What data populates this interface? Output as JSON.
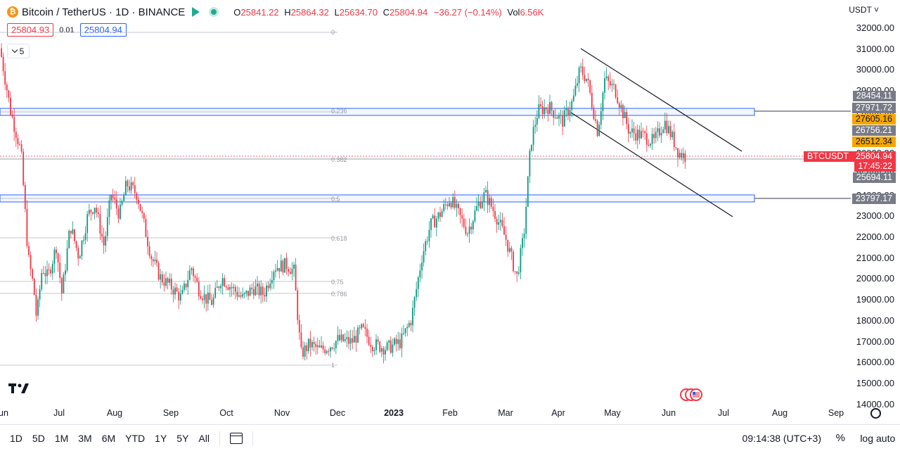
{
  "header": {
    "symbol_logo": "₿",
    "title": "Bitcoin / TetherUS · 1D · BINANCE",
    "ohlc": {
      "o_label": "O",
      "o": "25841.22",
      "h_label": "H",
      "h": "25864.32",
      "l_label": "L",
      "l": "25634.70",
      "c_label": "C",
      "c": "25804.94",
      "change": "−36.27 (−0.14%)",
      "vol_label": "Vol",
      "vol": "6.56K"
    }
  },
  "order": {
    "sell": "25804.93",
    "spread": "0.01",
    "buy": "25804.94"
  },
  "indicator_toggle": {
    "count": "5"
  },
  "currency": "USDT",
  "price_axis": [
    "32000.00",
    "31000.00",
    "30000.00",
    "29000.00",
    "28000.00",
    "27000.00",
    "26000.00",
    "25000.00",
    "24000.00",
    "23000.00",
    "22000.00",
    "21000.00",
    "20000.00",
    "19000.00",
    "18000.00",
    "17000.00",
    "16000.00",
    "15000.00",
    "14000.00"
  ],
  "price_tags": {
    "t1": "28454.11",
    "t2": "27971.72",
    "t3": "27605.16",
    "t4": "26756.21",
    "t5": "26512.34",
    "symbol": "BTCUSDT",
    "last": "25804.94",
    "countdown": "17:45:22",
    "t6": "25694.11",
    "t7": "23797.17"
  },
  "fib_levels": [
    "0",
    "0.236",
    "0.382",
    "0.5",
    "0.618",
    "0.75",
    "0.786",
    "1"
  ],
  "time_axis": [
    "un",
    "Jul",
    "Aug",
    "Sep",
    "Oct",
    "Nov",
    "Dec",
    "2023",
    "Feb",
    "Mar",
    "Apr",
    "May",
    "Jun",
    "Jul",
    "Aug",
    "Sep"
  ],
  "bottom": {
    "ranges": [
      "1D",
      "5D",
      "1M",
      "3M",
      "6M",
      "YTD",
      "1Y",
      "5Y",
      "All"
    ],
    "clock": "09:14:38 (UTC+3)",
    "percent": "%",
    "log": "log",
    "auto": "auto"
  },
  "chart_data": {
    "type": "candlestick",
    "symbol": "BTCUSDT",
    "interval": "1D",
    "current_price": 25804.94,
    "y_range": [
      14000,
      32000
    ],
    "channel_upper": [
      [
        31000,
        28200
      ],
      [
        1055,
        215
      ]
    ],
    "support_zones": [
      [
        27500,
        28000
      ],
      [
        23400,
        23700
      ]
    ],
    "price_path": [
      [
        31000,
        0
      ],
      [
        28000,
        15
      ],
      [
        26000,
        30
      ],
      [
        21000,
        40
      ],
      [
        19500,
        48
      ],
      [
        18000,
        52
      ],
      [
        20500,
        60
      ],
      [
        20000,
        68
      ],
      [
        21500,
        80
      ],
      [
        19200,
        88
      ],
      [
        22500,
        100
      ],
      [
        21000,
        112
      ],
      [
        23000,
        125
      ],
      [
        23500,
        135
      ],
      [
        21500,
        148
      ],
      [
        24000,
        158
      ],
      [
        23000,
        170
      ],
      [
        24500,
        180
      ],
      [
        24000,
        195
      ],
      [
        22500,
        205
      ],
      [
        21000,
        215
      ],
      [
        20000,
        228
      ],
      [
        19500,
        245
      ],
      [
        19000,
        258
      ],
      [
        20500,
        272
      ],
      [
        19500,
        282
      ],
      [
        19000,
        292
      ],
      [
        18800,
        302
      ],
      [
        20000,
        315
      ],
      [
        19500,
        330
      ],
      [
        19000,
        345
      ],
      [
        19500,
        360
      ],
      [
        19200,
        375
      ],
      [
        20500,
        390
      ],
      [
        20600,
        408
      ],
      [
        20300,
        418
      ],
      [
        16300,
        428
      ],
      [
        16800,
        440
      ],
      [
        16500,
        455
      ],
      [
        16700,
        468
      ],
      [
        17000,
        480
      ],
      [
        16900,
        500
      ],
      [
        17500,
        515
      ],
      [
        16800,
        530
      ],
      [
        16600,
        550
      ],
      [
        16900,
        570
      ],
      [
        18000,
        585
      ],
      [
        21000,
        600
      ],
      [
        22500,
        612
      ],
      [
        23000,
        625
      ],
      [
        23800,
        640
      ],
      [
        22200,
        665
      ],
      [
        23500,
        680
      ],
      [
        24000,
        690
      ],
      [
        23000,
        705
      ],
      [
        21800,
        720
      ],
      [
        20000,
        735
      ],
      [
        22000,
        745
      ],
      [
        26500,
        755
      ],
      [
        28000,
        765
      ],
      [
        28200,
        780
      ],
      [
        27500,
        800
      ],
      [
        28500,
        815
      ],
      [
        30000,
        825
      ],
      [
        29500,
        835
      ],
      [
        27000,
        850
      ],
      [
        29500,
        860
      ],
      [
        29000,
        875
      ],
      [
        28000,
        885
      ],
      [
        27000,
        895
      ],
      [
        26800,
        915
      ],
      [
        26500,
        930
      ],
      [
        27500,
        945
      ],
      [
        26800,
        955
      ],
      [
        26000,
        965
      ],
      [
        25800,
        975
      ]
    ]
  }
}
